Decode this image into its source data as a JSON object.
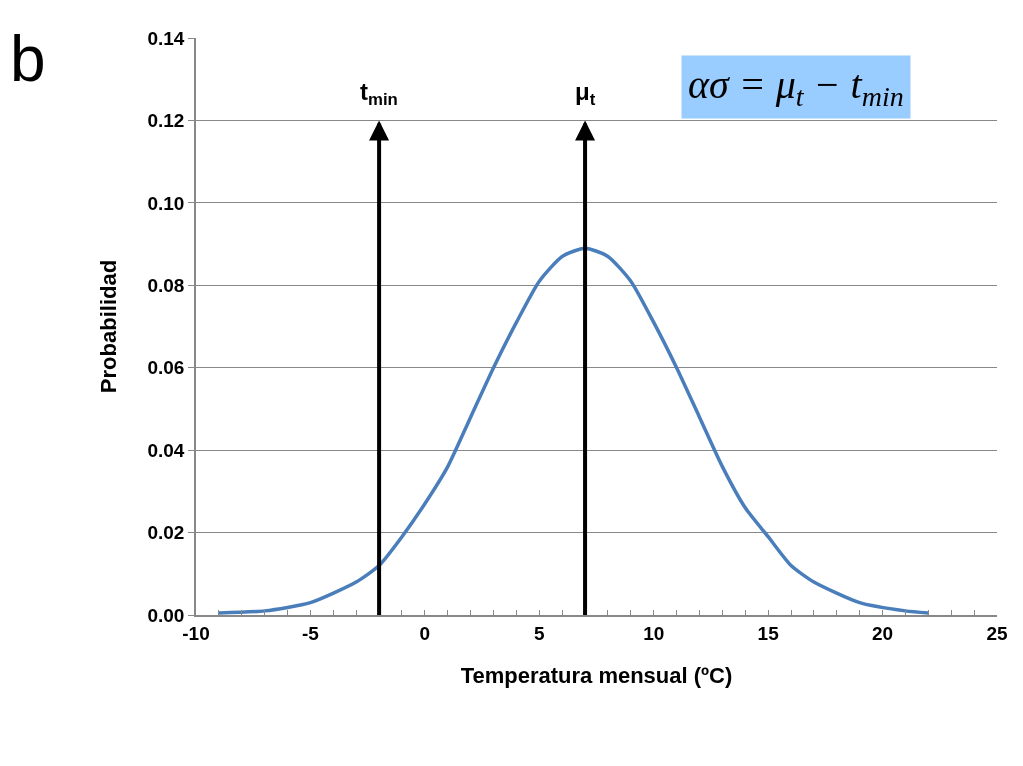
{
  "chart_data": {
    "type": "line",
    "xlabel": "Temperatura mensual (ºC)",
    "ylabel": "Probabilidad",
    "annotations": [
      "b",
      "ασ = μ$_{t}$ − t$_{min}$"
    ],
    "x": [
      -9,
      -7,
      -5,
      -3,
      -2,
      -1,
      0,
      1,
      2,
      3,
      4,
      5,
      6,
      7,
      8,
      9,
      10,
      11,
      12,
      13,
      14,
      15,
      16,
      17,
      19,
      21,
      22
    ],
    "series": [
      {
        "color": "#4a7ebb",
        "values": [
          0.0005,
          0.001,
          0.003,
          0.008,
          0.012,
          0.019,
          0.027,
          0.036,
          0.048,
          0.06,
          0.071,
          0.081,
          0.087,
          0.089,
          0.087,
          0.081,
          0.071,
          0.06,
          0.048,
          0.036,
          0.026,
          0.019,
          0.012,
          0.008,
          0.003,
          0.001,
          0.0005
        ]
      }
    ],
    "xlim": [
      -10,
      25
    ],
    "xticks": [
      -10,
      {
        "value": -9,
        "label": null
      },
      {
        "value": -8,
        "label": null
      },
      {
        "value": -7,
        "label": null
      },
      {
        "value": -6,
        "label": null
      },
      -5,
      {
        "value": -4,
        "label": null
      },
      {
        "value": -3,
        "label": null
      },
      {
        "value": -2,
        "label": null
      },
      {
        "value": -1,
        "label": null
      },
      0,
      {
        "value": 1,
        "label": null
      },
      {
        "value": 2,
        "label": null
      },
      {
        "value": 3,
        "label": null
      },
      {
        "value": 4,
        "label": null
      },
      5,
      {
        "value": 6,
        "label": null
      },
      {
        "value": 7,
        "label": null
      },
      {
        "value": 8,
        "label": null
      },
      {
        "value": 9,
        "label": null
      },
      10,
      {
        "value": 11,
        "label": null
      },
      {
        "value": 12,
        "label": null
      },
      {
        "value": 13,
        "label": null
      },
      {
        "value": 14,
        "label": null
      },
      15,
      {
        "value": 16,
        "label": null
      },
      {
        "value": 17,
        "label": null
      },
      {
        "value": 18,
        "label": null
      },
      {
        "value": 19,
        "label": null
      },
      20,
      {
        "value": 21,
        "label": null
      },
      {
        "value": 22,
        "label": null
      },
      {
        "value": 23,
        "label": null
      },
      {
        "value": 24,
        "label": null
      },
      25
    ],
    "ylim": [
      0,
      0.14
    ],
    "yticks": [
      {
        "value": 0,
        "label": "0.00"
      },
      {
        "value": 0.02,
        "label": "0.02"
      },
      {
        "value": 0.04,
        "label": "0.04"
      },
      {
        "value": 0.06,
        "label": "0.06"
      },
      {
        "value": 0.08,
        "label": "0.08"
      },
      {
        "value": 0.1,
        "label": "0.10"
      },
      {
        "value": 0.12,
        "label": "0.12"
      },
      {
        "value": 0.14,
        "label": "0.14"
      }
    ],
    "ref_lines": [
      {
        "axis": "x",
        "value": -2,
        "label": "t$_{min}$",
        "color": "#000000"
      },
      {
        "axis": "x",
        "value": 7,
        "label": "μ$_{t}$",
        "color": "#000000"
      }
    ],
    "grid": "y",
    "marker": "none",
    "line_style": "solid"
  }
}
